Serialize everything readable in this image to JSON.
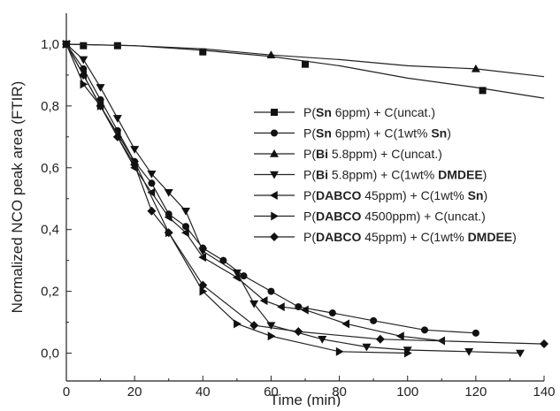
{
  "chart_data": {
    "type": "line",
    "title": "",
    "xlabel": "Time (min)",
    "ylabel": "Normalized NCO peak area (FTIR)",
    "xlim": [
      0,
      140
    ],
    "ylim": [
      -0.09,
      1.1
    ],
    "x_ticks": [
      "0",
      "20",
      "40",
      "60",
      "80",
      "100",
      "120",
      "140"
    ],
    "y_ticks": [
      "0,0",
      "0,2",
      "0,4",
      "0,6",
      "0,8",
      "1,0"
    ],
    "grid": false,
    "legend_position": "right",
    "series": [
      {
        "name": "P(Sn 6ppm) + C(uncat.)",
        "legend": [
          {
            "t": "P("
          },
          {
            "t": "Sn",
            "b": true
          },
          {
            "t": " 6ppm) + C(uncat.)"
          }
        ],
        "marker": "square",
        "points": [
          [
            0,
            1.0
          ],
          [
            5,
            0.995
          ],
          [
            15,
            0.995
          ],
          [
            40,
            0.975
          ],
          [
            70,
            0.935
          ],
          [
            122,
            0.85
          ]
        ],
        "fit": [
          [
            0,
            1.0
          ],
          [
            20,
            0.995
          ],
          [
            40,
            0.98
          ],
          [
            60,
            0.96
          ],
          [
            80,
            0.93
          ],
          [
            100,
            0.89
          ],
          [
            120,
            0.86
          ],
          [
            140,
            0.825
          ]
        ]
      },
      {
        "name": "P(Sn 6ppm) + C(1wt% Sn)",
        "legend": [
          {
            "t": "P("
          },
          {
            "t": "Sn",
            "b": true
          },
          {
            "t": " 6ppm) + C(1wt% "
          },
          {
            "t": "Sn",
            "b": true
          },
          {
            "t": ")"
          }
        ],
        "marker": "circle",
        "points": [
          [
            0,
            1.0
          ],
          [
            5,
            0.92
          ],
          [
            10,
            0.82
          ],
          [
            15,
            0.72
          ],
          [
            20,
            0.62
          ],
          [
            25,
            0.55
          ],
          [
            30,
            0.45
          ],
          [
            35,
            0.41
          ],
          [
            40,
            0.34
          ],
          [
            46,
            0.3
          ],
          [
            52,
            0.25
          ],
          [
            60,
            0.2
          ],
          [
            68,
            0.15
          ],
          [
            78,
            0.13
          ],
          [
            90,
            0.105
          ],
          [
            105,
            0.075
          ],
          [
            120,
            0.065
          ]
        ],
        "fit": null
      },
      {
        "name": "P(Bi 5.8ppm) + C(uncat.)",
        "legend": [
          {
            "t": "P("
          },
          {
            "t": "Bi",
            "b": true
          },
          {
            "t": " 5.8ppm) + C(uncat.)"
          }
        ],
        "marker": "triangle-up",
        "points": [
          [
            0,
            1.0
          ],
          [
            60,
            0.965
          ],
          [
            120,
            0.92
          ]
        ],
        "fit": [
          [
            0,
            1.0
          ],
          [
            20,
            0.995
          ],
          [
            40,
            0.985
          ],
          [
            60,
            0.965
          ],
          [
            80,
            0.95
          ],
          [
            100,
            0.93
          ],
          [
            120,
            0.92
          ],
          [
            140,
            0.895
          ]
        ]
      },
      {
        "name": "P(Bi 5.8ppm) + C(1wt% DMDEE)",
        "legend": [
          {
            "t": "P("
          },
          {
            "t": "Bi",
            "b": true
          },
          {
            "t": " 5.8ppm) + C(1wt% "
          },
          {
            "t": "DMDEE",
            "b": true
          },
          {
            "t": ")"
          }
        ],
        "marker": "triangle-down",
        "points": [
          [
            0,
            1.0
          ],
          [
            5,
            0.95
          ],
          [
            10,
            0.86
          ],
          [
            15,
            0.76
          ],
          [
            20,
            0.66
          ],
          [
            25,
            0.58
          ],
          [
            30,
            0.52
          ],
          [
            35,
            0.46
          ],
          [
            40,
            0.33
          ],
          [
            50,
            0.26
          ],
          [
            55,
            0.16
          ],
          [
            60,
            0.09
          ],
          [
            75,
            0.045
          ],
          [
            88,
            0.02
          ],
          [
            100,
            0.01
          ],
          [
            118,
            0.005
          ],
          [
            133,
            0.0
          ]
        ],
        "fit": null
      },
      {
        "name": "P(DABCO 45ppm) + C(1wt% Sn)",
        "legend": [
          {
            "t": "P("
          },
          {
            "t": "DABCO",
            "b": true
          },
          {
            "t": " 45ppm) + C(1wt% "
          },
          {
            "t": "Sn",
            "b": true
          },
          {
            "t": ")"
          }
        ],
        "marker": "triangle-left",
        "points": [
          [
            0,
            1.0
          ],
          [
            5,
            0.9
          ],
          [
            10,
            0.8
          ],
          [
            15,
            0.7
          ],
          [
            20,
            0.6
          ],
          [
            25,
            0.52
          ],
          [
            30,
            0.44
          ],
          [
            35,
            0.39
          ],
          [
            40,
            0.31
          ],
          [
            50,
            0.245
          ],
          [
            58,
            0.17
          ],
          [
            63,
            0.15
          ],
          [
            70,
            0.14
          ],
          [
            82,
            0.095
          ],
          [
            98,
            0.055
          ],
          [
            110,
            0.04
          ]
        ],
        "fit": null
      },
      {
        "name": "P(DABCO 4500ppm) + C(uncat.)",
        "legend": [
          {
            "t": "P("
          },
          {
            "t": "DABCO",
            "b": true
          },
          {
            "t": " 4500ppm) + C(uncat.)"
          }
        ],
        "marker": "triangle-right",
        "points": [
          [
            0,
            1.0
          ],
          [
            5,
            0.87
          ],
          [
            10,
            0.8
          ],
          [
            20,
            0.62
          ],
          [
            30,
            0.39
          ],
          [
            40,
            0.2
          ],
          [
            50,
            0.095
          ],
          [
            60,
            0.055
          ],
          [
            80,
            0.005
          ],
          [
            100,
            0.0
          ]
        ],
        "fit": null
      },
      {
        "name": "P(DABCO 45ppm) + C(1wt% DMDEE)",
        "legend": [
          {
            "t": "P("
          },
          {
            "t": "DABCO",
            "b": true
          },
          {
            "t": " 45ppm) + C(1wt% "
          },
          {
            "t": "DMDEE",
            "b": true
          },
          {
            "t": ")"
          }
        ],
        "marker": "diamond",
        "points": [
          [
            0,
            1.0
          ],
          [
            5,
            0.9
          ],
          [
            10,
            0.8
          ],
          [
            15,
            0.7
          ],
          [
            20,
            0.61
          ],
          [
            25,
            0.46
          ],
          [
            30,
            0.39
          ],
          [
            40,
            0.22
          ],
          [
            55,
            0.09
          ],
          [
            68,
            0.07
          ],
          [
            92,
            0.045
          ],
          [
            140,
            0.03
          ]
        ],
        "fit": null
      }
    ]
  }
}
